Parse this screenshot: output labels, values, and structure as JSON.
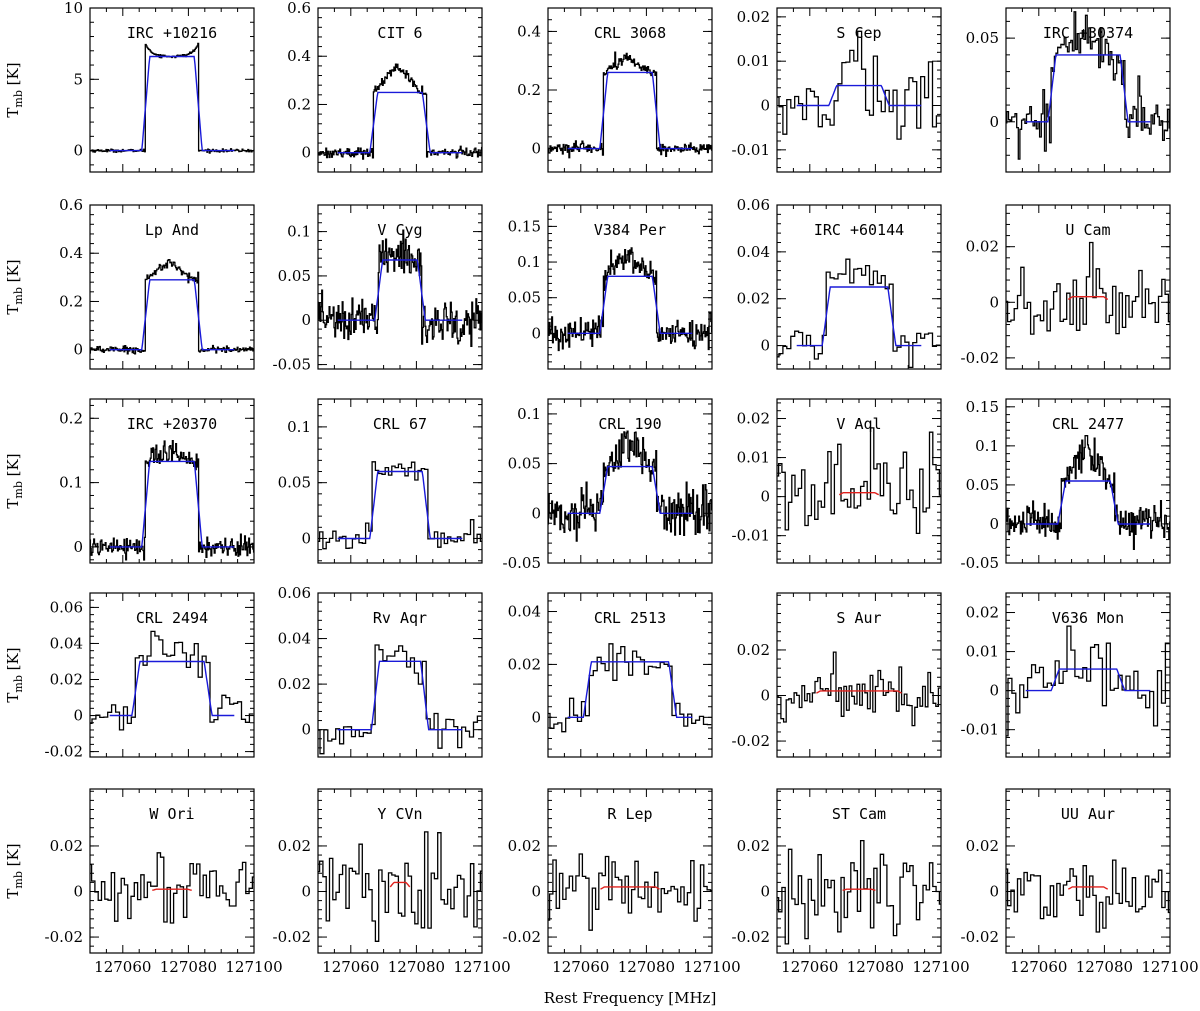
{
  "figure": {
    "xlabel": "Rest Frequency [MHz]",
    "ylabel_main": "T",
    "ylabel_sub": "mb",
    "ylabel_unit": " [K]",
    "colors": {
      "data": "#000000",
      "model_blue": "#1a1ad9",
      "model_red": "#e0201c"
    }
  },
  "chart_data": [
    {
      "type": "line",
      "title": "IRC +10216",
      "ylim": [
        -1.5,
        10
      ],
      "yticks": [
        0,
        5,
        10
      ],
      "ytick_labels": [
        "0",
        "5",
        "10"
      ],
      "peak": 7.2,
      "model": 6.6,
      "model_color": "blue",
      "noise": 0.05,
      "xlim": [
        127050,
        127100
      ],
      "line_center": 127075,
      "line_width": 16,
      "step": 0.25,
      "horn": true
    },
    {
      "type": "line",
      "title": "CIT 6",
      "ylim": [
        -0.08,
        0.6
      ],
      "yticks": [
        0,
        0.2,
        0.4,
        0.6
      ],
      "ytick_labels": [
        "0",
        "0.2",
        "0.4",
        "0.6"
      ],
      "peak": 0.36,
      "model": 0.25,
      "model_color": "blue",
      "noise": 0.01,
      "xlim": [
        127050,
        127100
      ],
      "line_center": 127075,
      "line_width": 16,
      "step": 0.25
    },
    {
      "type": "line",
      "title": "CRL 3068",
      "ylim": [
        -0.08,
        0.48
      ],
      "yticks": [
        0,
        0.2,
        0.4
      ],
      "ytick_labels": [
        "0",
        "0.2",
        "0.4"
      ],
      "peak": 0.31,
      "model": 0.26,
      "model_color": "blue",
      "noise": 0.01,
      "xlim": [
        127050,
        127100
      ],
      "line_center": 127075,
      "line_width": 16,
      "step": 0.25
    },
    {
      "type": "line",
      "title": "S Cep",
      "ylim": [
        -0.015,
        0.022
      ],
      "yticks": [
        -0.01,
        0,
        0.01,
        0.02
      ],
      "ytick_labels": [
        "-0.01",
        "0",
        "0.01",
        "0.02"
      ],
      "peak": 0.008,
      "model": 0.0045,
      "model_color": "blue",
      "noise": 0.005,
      "xlim": [
        127050,
        127100
      ],
      "line_center": 127075,
      "line_width": 16,
      "step": 1.2
    },
    {
      "type": "line",
      "title": "IRC +30374",
      "ylim": [
        -0.03,
        0.068
      ],
      "yticks": [
        0,
        0.05
      ],
      "ytick_labels": [
        "0",
        "0.05"
      ],
      "peak": 0.05,
      "model": 0.04,
      "model_color": "blue",
      "noise": 0.008,
      "xlim": [
        127050,
        127100
      ],
      "line_center": 127075,
      "line_width": 22,
      "step": 0.5
    },
    {
      "type": "line",
      "title": "Lp And",
      "ylim": [
        -0.08,
        0.6
      ],
      "yticks": [
        0,
        0.2,
        0.4,
        0.6
      ],
      "ytick_labels": [
        "0",
        "0.2",
        "0.4",
        "0.6"
      ],
      "peak": 0.37,
      "model": 0.29,
      "model_color": "blue",
      "noise": 0.008,
      "xlim": [
        127050,
        127100
      ],
      "line_center": 127075,
      "line_width": 16,
      "step": 0.25
    },
    {
      "type": "line",
      "title": "V Cyg",
      "ylim": [
        -0.055,
        0.13
      ],
      "yticks": [
        -0.05,
        0,
        0.05,
        0.1
      ],
      "ytick_labels": [
        "-0.05",
        "0",
        "0.05",
        "0.1"
      ],
      "peak": 0.075,
      "model": 0.068,
      "model_color": "blue",
      "noise": 0.012,
      "xlim": [
        127050,
        127100
      ],
      "line_center": 127075,
      "line_width": 13,
      "step": 0.25
    },
    {
      "type": "line",
      "title": "V384 Per",
      "ylim": [
        -0.05,
        0.18
      ],
      "yticks": [
        0,
        0.05,
        0.1,
        0.15
      ],
      "ytick_labels": [
        "0",
        "0.05",
        "0.1",
        "0.15"
      ],
      "peak": 0.11,
      "model": 0.08,
      "model_color": "blue",
      "noise": 0.01,
      "xlim": [
        127050,
        127100
      ],
      "line_center": 127075,
      "line_width": 16,
      "step": 0.25
    },
    {
      "type": "line",
      "title": "IRC +60144",
      "ylim": [
        -0.01,
        0.06
      ],
      "yticks": [
        0,
        0.02,
        0.04,
        0.06
      ],
      "ytick_labels": [
        "0",
        "0.02",
        "0.04",
        "0.06"
      ],
      "peak": 0.035,
      "model": 0.025,
      "model_color": "blue",
      "noise": 0.003,
      "xlim": [
        127050,
        127100
      ],
      "line_center": 127075,
      "line_width": 20,
      "step": 1.2
    },
    {
      "type": "line",
      "title": "U Cam",
      "ylim": [
        -0.024,
        0.035
      ],
      "yticks": [
        -0.02,
        0,
        0.02
      ],
      "ytick_labels": [
        "-0.02",
        "0",
        "0.02"
      ],
      "peak": 0.003,
      "model": 0.002,
      "model_color": "red",
      "noise": 0.007,
      "xlim": [
        127050,
        127100
      ],
      "line_center": 127075,
      "line_width": 12,
      "step": 1.0
    },
    {
      "type": "line",
      "title": "IRC +20370",
      "ylim": [
        -0.025,
        0.23
      ],
      "yticks": [
        0,
        0.1,
        0.2
      ],
      "ytick_labels": [
        "0",
        "0.1",
        "0.2"
      ],
      "peak": 0.15,
      "model": 0.133,
      "model_color": "blue",
      "noise": 0.008,
      "xlim": [
        127050,
        127100
      ],
      "line_center": 127075,
      "line_width": 16,
      "step": 0.25
    },
    {
      "type": "line",
      "title": "CRL 67",
      "ylim": [
        -0.022,
        0.125
      ],
      "yticks": [
        0,
        0.05,
        0.1
      ],
      "ytick_labels": [
        "0",
        "0.05",
        "0.1"
      ],
      "peak": 0.066,
      "model": 0.06,
      "model_color": "blue",
      "noise": 0.005,
      "xlim": [
        127050,
        127100
      ],
      "line_center": 127075,
      "line_width": 16,
      "step": 1.0
    },
    {
      "type": "line",
      "title": "CRL 190",
      "ylim": [
        -0.05,
        0.115
      ],
      "yticks": [
        -0.05,
        0,
        0.05,
        0.1
      ],
      "ytick_labels": [
        "-0.05",
        "0",
        "0.05",
        "0.1"
      ],
      "peak": 0.07,
      "model": 0.047,
      "model_color": "blue",
      "noise": 0.012,
      "xlim": [
        127050,
        127100
      ],
      "line_center": 127075,
      "line_width": 16,
      "step": 0.25
    },
    {
      "type": "line",
      "title": "V Aql",
      "ylim": [
        -0.017,
        0.025
      ],
      "yticks": [
        -0.01,
        0,
        0.01,
        0.02
      ],
      "ytick_labels": [
        "-0.01",
        "0",
        "0.01",
        "0.02"
      ],
      "peak": 0.001,
      "model": 0.001,
      "model_color": "red",
      "noise": 0.007,
      "xlim": [
        127050,
        127100
      ],
      "line_center": 127075,
      "line_width": 12,
      "step": 1.0
    },
    {
      "type": "line",
      "title": "CRL 2477",
      "ylim": [
        -0.05,
        0.16
      ],
      "yticks": [
        -0.05,
        0,
        0.05,
        0.1,
        0.15
      ],
      "ytick_labels": [
        "-0.05",
        "0",
        "0.05",
        "0.1",
        "0.15"
      ],
      "peak": 0.1,
      "model": 0.055,
      "model_color": "blue",
      "noise": 0.012,
      "xlim": [
        127050,
        127100
      ],
      "line_center": 127075,
      "line_width": 16,
      "step": 0.25
    },
    {
      "type": "line",
      "title": "CRL 2494",
      "ylim": [
        -0.023,
        0.068
      ],
      "yticks": [
        -0.02,
        0,
        0.02,
        0.04,
        0.06
      ],
      "ytick_labels": [
        "-0.02",
        "0",
        "0.02",
        "0.04",
        "0.06"
      ],
      "peak": 0.04,
      "model": 0.03,
      "model_color": "blue",
      "noise": 0.006,
      "xlim": [
        127050,
        127100
      ],
      "line_center": 127075,
      "line_width": 22,
      "step": 1.2
    },
    {
      "type": "line",
      "title": "Rv Aqr",
      "ylim": [
        -0.012,
        0.06
      ],
      "yticks": [
        0,
        0.02,
        0.04,
        0.06
      ],
      "ytick_labels": [
        "0",
        "0.02",
        "0.04",
        "0.06"
      ],
      "peak": 0.035,
      "model": 0.03,
      "model_color": "blue",
      "noise": 0.004,
      "xlim": [
        127050,
        127100
      ],
      "line_center": 127075,
      "line_width": 15,
      "step": 1.2
    },
    {
      "type": "line",
      "title": "CRL 2513",
      "ylim": [
        -0.015,
        0.047
      ],
      "yticks": [
        0,
        0.02,
        0.04
      ],
      "ytick_labels": [
        "0",
        "0.02",
        "0.04"
      ],
      "peak": 0.022,
      "model": 0.021,
      "model_color": "blue",
      "noise": 0.003,
      "xlim": [
        127050,
        127100
      ],
      "line_center": 127075,
      "line_width": 26,
      "step": 1.2
    },
    {
      "type": "line",
      "title": "S Aur",
      "ylim": [
        -0.027,
        0.045
      ],
      "yticks": [
        -0.02,
        0,
        0.02
      ],
      "ytick_labels": [
        "-0.02",
        "0",
        "0.02"
      ],
      "peak": 0.002,
      "model": 0.002,
      "model_color": "red",
      "noise": 0.006,
      "xlim": [
        127050,
        127100
      ],
      "line_center": 127075,
      "line_width": 26,
      "step": 0.8
    },
    {
      "type": "line",
      "title": "V636 Mon",
      "ylim": [
        -0.017,
        0.025
      ],
      "yticks": [
        -0.01,
        0,
        0.01,
        0.02
      ],
      "ytick_labels": [
        "-0.01",
        "0",
        "0.01",
        "0.02"
      ],
      "peak": 0.006,
      "model": 0.0055,
      "model_color": "blue",
      "noise": 0.005,
      "xlim": [
        127050,
        127100
      ],
      "line_center": 127075,
      "line_width": 20,
      "step": 1.2
    },
    {
      "type": "line",
      "title": "W Ori",
      "ylim": [
        -0.027,
        0.045
      ],
      "yticks": [
        -0.02,
        0,
        0.02
      ],
      "ytick_labels": [
        "-0.02",
        "0",
        "0.02"
      ],
      "peak": 0.001,
      "model": 0.001,
      "model_color": "red",
      "noise": 0.008,
      "xlim": [
        127050,
        127100
      ],
      "line_center": 127075,
      "line_width": 12,
      "step": 1.0,
      "xticks": [
        127060,
        127080,
        127100
      ],
      "xtick_labels": [
        "127060",
        "127080",
        "127100"
      ]
    },
    {
      "type": "line",
      "title": "Y CVn",
      "ylim": [
        -0.027,
        0.045
      ],
      "yticks": [
        -0.02,
        0,
        0.02
      ],
      "ytick_labels": [
        "-0.02",
        "0",
        "0.02"
      ],
      "peak": 0.004,
      "model": 0.004,
      "model_color": "red",
      "noise": 0.008,
      "xlim": [
        127050,
        127100
      ],
      "line_center": 127075,
      "line_width": 6,
      "step": 1.0,
      "xticks": [
        127060,
        127080,
        127100
      ],
      "xtick_labels": [
        "127060",
        "127080",
        "127100"
      ]
    },
    {
      "type": "line",
      "title": "R Lep",
      "ylim": [
        -0.027,
        0.045
      ],
      "yticks": [
        -0.02,
        0,
        0.02
      ],
      "ytick_labels": [
        "-0.02",
        "0",
        "0.02"
      ],
      "peak": 0.002,
      "model": 0.002,
      "model_color": "red",
      "noise": 0.008,
      "xlim": [
        127050,
        127100
      ],
      "line_center": 127075,
      "line_width": 18,
      "step": 1.0,
      "xticks": [
        127060,
        127080,
        127100
      ],
      "xtick_labels": [
        "127060",
        "127080",
        "127100"
      ]
    },
    {
      "type": "line",
      "title": "ST Cam",
      "ylim": [
        -0.027,
        0.045
      ],
      "yticks": [
        -0.02,
        0,
        0.02
      ],
      "ytick_labels": [
        "-0.02",
        "0",
        "0.02"
      ],
      "peak": 0.001,
      "model": 0.001,
      "model_color": "red",
      "noise": 0.009,
      "xlim": [
        127050,
        127100
      ],
      "line_center": 127075,
      "line_width": 10,
      "step": 1.0,
      "xticks": [
        127060,
        127080,
        127100
      ],
      "xtick_labels": [
        "127060",
        "127080",
        "127100"
      ]
    },
    {
      "type": "line",
      "title": "UU Aur",
      "ylim": [
        -0.027,
        0.045
      ],
      "yticks": [
        -0.02,
        0,
        0.02
      ],
      "ytick_labels": [
        "-0.02",
        "0",
        "0.02"
      ],
      "peak": 0.002,
      "model": 0.002,
      "model_color": "red",
      "noise": 0.007,
      "xlim": [
        127050,
        127100
      ],
      "line_center": 127075,
      "line_width": 12,
      "step": 1.0,
      "xticks": [
        127060,
        127080,
        127100
      ],
      "xtick_labels": [
        "127060",
        "127080",
        "127100"
      ]
    }
  ]
}
